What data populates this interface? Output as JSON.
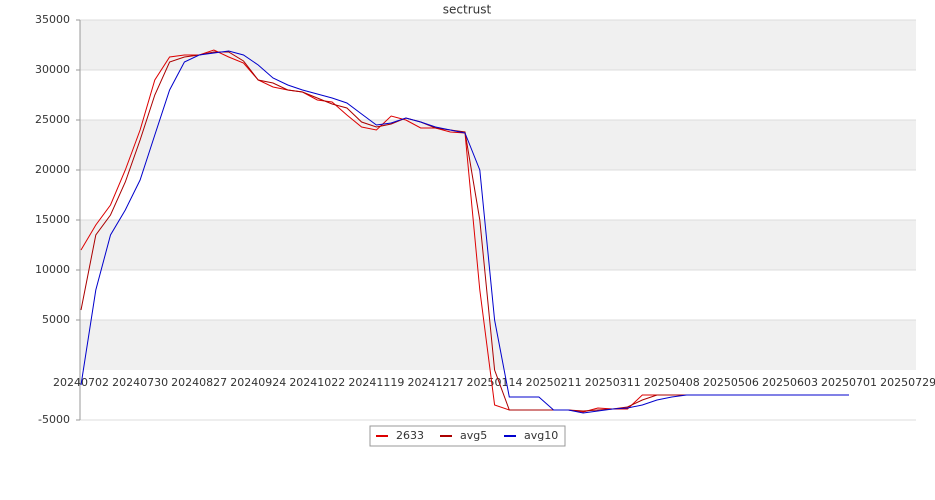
{
  "chart_data": {
    "type": "line",
    "title": "sectrust",
    "categories": [
      "20240702",
      null,
      null,
      null,
      "20240730",
      null,
      null,
      null,
      "20240827",
      null,
      null,
      null,
      "20240924",
      null,
      null,
      null,
      "20241022",
      null,
      null,
      null,
      "20241119",
      null,
      null,
      null,
      "20241217",
      null,
      null,
      null,
      "20250114",
      null,
      null,
      null,
      "20250211",
      null,
      null,
      null,
      "20250311",
      null,
      null,
      null,
      "20250408",
      null,
      null,
      null,
      "20250506",
      null,
      null,
      null,
      "20250603",
      null,
      null,
      null,
      "20250701",
      null,
      null,
      null,
      "20250729"
    ],
    "series": [
      {
        "name": "2633",
        "color": "#dd0000",
        "values": [
          12000,
          14500,
          16500,
          20000,
          24000,
          29000,
          31300,
          31500,
          31500,
          32000,
          31300,
          30700,
          29000,
          28300,
          28000,
          27800,
          27000,
          26800,
          25500,
          24300,
          24000,
          25400,
          25000,
          24200,
          24200,
          23800,
          23700,
          8000,
          -3500,
          -4000,
          -4000,
          -4000,
          -4000,
          -4000,
          -4200,
          -3800,
          -3900,
          -3900,
          -2500,
          -2500,
          -2500,
          -2500,
          -2500,
          -2500,
          -2500,
          -2500,
          -2500,
          -2500,
          -2500,
          -2500,
          -2500,
          -2500,
          -2500,
          null,
          null,
          null,
          null
        ]
      },
      {
        "name": "avg5",
        "color": "#aa0000",
        "values": [
          6000,
          13500,
          15500,
          18800,
          23000,
          27500,
          30800,
          31300,
          31500,
          31800,
          31800,
          30900,
          29000,
          28700,
          28000,
          27800,
          27200,
          26600,
          26200,
          24800,
          24300,
          24600,
          25200,
          24800,
          24200,
          24000,
          23800,
          15000,
          0,
          -4000,
          -4000,
          -4000,
          -4000,
          -4000,
          -4100,
          -4000,
          -3900,
          -3700,
          -3000,
          -2500,
          -2500,
          -2500,
          -2500,
          -2500,
          -2500,
          -2500,
          -2500,
          -2500,
          -2500,
          -2500,
          -2500,
          -2500,
          -2500,
          null,
          null,
          null,
          null
        ]
      },
      {
        "name": "avg10",
        "color": "#0000cc",
        "values": [
          -1500,
          8000,
          13500,
          16000,
          19000,
          23500,
          28000,
          30800,
          31500,
          31700,
          31900,
          31500,
          30500,
          29200,
          28500,
          28000,
          27600,
          27200,
          26700,
          25600,
          24500,
          24700,
          25200,
          24800,
          24300,
          24000,
          23700,
          20000,
          5000,
          -2700,
          -2700,
          -2700,
          -4000,
          -4000,
          -4300,
          -4100,
          -3900,
          -3800,
          -3500,
          -3000,
          -2700,
          -2500,
          -2500,
          -2500,
          -2500,
          -2500,
          -2500,
          -2500,
          -2500,
          -2500,
          -2500,
          -2500,
          -2500,
          null,
          null,
          null,
          null
        ]
      }
    ],
    "ylim": [
      -5000,
      35000
    ],
    "yticks": [
      -5000,
      5000,
      10000,
      15000,
      20000,
      25000,
      30000,
      35000
    ],
    "grid": true,
    "legend": "bottom"
  }
}
